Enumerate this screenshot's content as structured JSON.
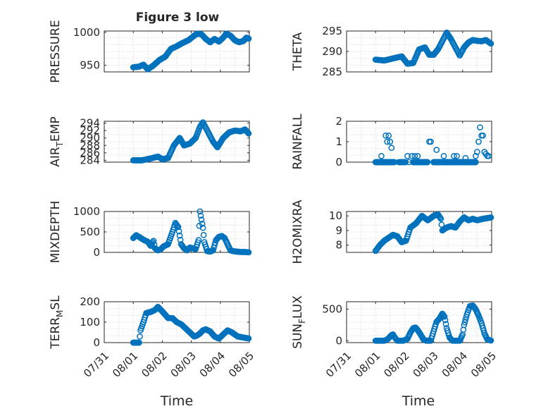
{
  "window": {
    "title": "Figure 3 low"
  },
  "figure": {
    "title": "Figure 3 low",
    "xlabel": "Time"
  },
  "colors": {
    "marker": "#0072BD",
    "axis": "#262626",
    "grid": "#d9d9d9",
    "background": "#ffffff"
  },
  "chart_data": [
    {
      "type": "scatter",
      "ylabel": "PRESSURE",
      "ylim": [
        940,
        1002
      ],
      "yticks": [
        950,
        1000
      ],
      "xlim": [
        "07/31",
        "08/05"
      ],
      "xtick_labels": [
        "07/31",
        "08/01",
        "08/02",
        "08/03",
        "08/04",
        "08/05"
      ],
      "grid": true,
      "x_range_days": [
        1.0,
        5.0
      ],
      "keypoints": [
        [
          1.0,
          947
        ],
        [
          1.2,
          948
        ],
        [
          1.35,
          951
        ],
        [
          1.5,
          944
        ],
        [
          1.7,
          950
        ],
        [
          1.9,
          958
        ],
        [
          2.1,
          963
        ],
        [
          2.3,
          975
        ],
        [
          2.5,
          979
        ],
        [
          2.7,
          984
        ],
        [
          2.9,
          988
        ],
        [
          3.1,
          995
        ],
        [
          3.2,
          998
        ],
        [
          3.35,
          997
        ],
        [
          3.5,
          990
        ],
        [
          3.65,
          985
        ],
        [
          3.8,
          990
        ],
        [
          3.95,
          986
        ],
        [
          4.1,
          992
        ],
        [
          4.2,
          998
        ],
        [
          4.35,
          995
        ],
        [
          4.5,
          988
        ],
        [
          4.65,
          985
        ],
        [
          4.8,
          987
        ],
        [
          4.9,
          992
        ],
        [
          5.0,
          990
        ]
      ],
      "note": ""
    },
    {
      "type": "scatter",
      "ylabel": "THETA",
      "ylim": [
        285,
        295
      ],
      "yticks": [
        285,
        290,
        295
      ],
      "xlim": [
        "07/31",
        "08/05"
      ],
      "xtick_labels": [
        "07/31",
        "08/01",
        "08/02",
        "08/03",
        "08/04",
        "08/05"
      ],
      "grid": true,
      "x_range_days": [
        1.0,
        5.0
      ],
      "keypoints": [
        [
          1.0,
          288
        ],
        [
          1.3,
          287.8
        ],
        [
          1.6,
          288.3
        ],
        [
          1.9,
          288.8
        ],
        [
          2.1,
          287
        ],
        [
          2.3,
          287.2
        ],
        [
          2.5,
          290.5
        ],
        [
          2.7,
          291
        ],
        [
          2.85,
          289.2
        ],
        [
          3.0,
          289.2
        ],
        [
          3.15,
          290.5
        ],
        [
          3.3,
          292.5
        ],
        [
          3.45,
          294.6
        ],
        [
          3.6,
          293
        ],
        [
          3.75,
          291
        ],
        [
          3.9,
          289
        ],
        [
          4.05,
          291
        ],
        [
          4.2,
          292.2
        ],
        [
          4.35,
          292.8
        ],
        [
          4.5,
          292.6
        ],
        [
          4.65,
          292.5
        ],
        [
          4.8,
          292.8
        ],
        [
          5.0,
          291.8
        ]
      ]
    },
    {
      "type": "scatter",
      "ylabel": "AIR_TEMP",
      "ylabel_main": "AIR",
      "ylabel_sub": "T",
      "ylabel_tail": "EMP",
      "ylim": [
        283.5,
        294.5
      ],
      "yticks": [
        284,
        286,
        288,
        290,
        292,
        294
      ],
      "xlim": [
        "07/31",
        "08/05"
      ],
      "xtick_labels": [
        "07/31",
        "08/01",
        "08/02",
        "08/03",
        "08/04",
        "08/05"
      ],
      "grid": true,
      "x_range_days": [
        1.0,
        5.0
      ],
      "keypoints": [
        [
          1.0,
          284
        ],
        [
          1.3,
          284
        ],
        [
          1.6,
          284.5
        ],
        [
          1.85,
          285
        ],
        [
          2.0,
          284.3
        ],
        [
          2.2,
          284.6
        ],
        [
          2.4,
          288
        ],
        [
          2.6,
          290
        ],
        [
          2.75,
          288
        ],
        [
          2.95,
          288.5
        ],
        [
          3.15,
          290
        ],
        [
          3.3,
          293
        ],
        [
          3.4,
          294.2
        ],
        [
          3.55,
          292
        ],
        [
          3.75,
          289
        ],
        [
          3.9,
          287.5
        ],
        [
          4.1,
          290
        ],
        [
          4.3,
          291.5
        ],
        [
          4.5,
          292
        ],
        [
          4.7,
          291.8
        ],
        [
          4.85,
          292.3
        ],
        [
          5.0,
          291
        ]
      ]
    },
    {
      "type": "scatter",
      "ylabel": "RAINFALL",
      "ylim": [
        0,
        2
      ],
      "yticks": [
        0,
        1,
        2
      ],
      "xlim": [
        "07/31",
        "08/05"
      ],
      "xtick_labels": [
        "07/31",
        "08/01",
        "08/02",
        "08/03",
        "08/04",
        "08/05"
      ],
      "grid": true,
      "points": [
        [
          1.05,
          0
        ],
        [
          1.1,
          0
        ],
        [
          1.15,
          0
        ],
        [
          1.2,
          0.3
        ],
        [
          1.25,
          0
        ],
        [
          1.3,
          0
        ],
        [
          1.35,
          1.3
        ],
        [
          1.4,
          1.0
        ],
        [
          1.45,
          1.3
        ],
        [
          1.5,
          1.0
        ],
        [
          1.55,
          0.7
        ],
        [
          1.6,
          0
        ],
        [
          1.65,
          0
        ],
        [
          1.8,
          0
        ],
        [
          1.85,
          0
        ],
        [
          1.9,
          0
        ],
        [
          1.95,
          0
        ],
        [
          2.0,
          0
        ],
        [
          2.1,
          0.3
        ],
        [
          2.15,
          0
        ],
        [
          2.25,
          0.3
        ],
        [
          2.3,
          0
        ],
        [
          2.35,
          0.3
        ],
        [
          2.45,
          0.3
        ],
        [
          2.5,
          0
        ],
        [
          2.6,
          0
        ],
        [
          2.7,
          0
        ],
        [
          2.85,
          1.0
        ],
        [
          2.9,
          1.0
        ],
        [
          3.0,
          0
        ],
        [
          3.05,
          0
        ],
        [
          3.1,
          0.6
        ],
        [
          3.2,
          0
        ],
        [
          3.3,
          0
        ],
        [
          3.35,
          0.3
        ],
        [
          3.4,
          0
        ],
        [
          3.5,
          0
        ],
        [
          3.6,
          0
        ],
        [
          3.7,
          0.3
        ],
        [
          3.8,
          0.3
        ],
        [
          3.85,
          0
        ],
        [
          3.9,
          0
        ],
        [
          3.95,
          0
        ],
        [
          4.0,
          0
        ],
        [
          4.05,
          0
        ],
        [
          4.1,
          0.2
        ],
        [
          4.2,
          0
        ],
        [
          4.3,
          0
        ],
        [
          4.35,
          0
        ],
        [
          4.45,
          0.3
        ],
        [
          4.5,
          0.5
        ],
        [
          4.55,
          1.0
        ],
        [
          4.6,
          1.7
        ],
        [
          4.65,
          1.3
        ],
        [
          4.7,
          1.3
        ],
        [
          4.75,
          0.5
        ],
        [
          4.8,
          0.4
        ],
        [
          4.85,
          0.3
        ],
        [
          4.9,
          0.3
        ]
      ],
      "zero_clusters": [
        [
          1.0,
          1.62
        ],
        [
          1.85,
          2.05
        ],
        [
          2.3,
          2.6
        ],
        [
          2.65,
          2.8
        ],
        [
          3.0,
          3.3
        ],
        [
          3.35,
          3.85
        ],
        [
          3.9,
          4.25
        ],
        [
          4.25,
          4.45
        ]
      ]
    },
    {
      "type": "scatter",
      "ylabel": "MIXDEPTH",
      "ylim": [
        0,
        1000
      ],
      "yticks": [
        0,
        500,
        1000
      ],
      "xlim": [
        "07/31",
        "08/05"
      ],
      "xtick_labels": [
        "07/31",
        "08/01",
        "08/02",
        "08/03",
        "08/04",
        "08/05"
      ],
      "grid": true,
      "x_range_days": [
        1.0,
        5.0
      ],
      "keypoints": [
        [
          1.0,
          350
        ],
        [
          1.1,
          420
        ],
        [
          1.2,
          380
        ],
        [
          1.35,
          310
        ],
        [
          1.5,
          260
        ],
        [
          1.6,
          160
        ],
        [
          1.7,
          280
        ],
        [
          1.75,
          100
        ],
        [
          1.85,
          50
        ],
        [
          1.95,
          80
        ],
        [
          2.05,
          150
        ],
        [
          2.2,
          200
        ],
        [
          2.35,
          500
        ],
        [
          2.45,
          720
        ],
        [
          2.55,
          620
        ],
        [
          2.65,
          200
        ],
        [
          2.75,
          100
        ],
        [
          2.85,
          50
        ],
        [
          2.95,
          120
        ],
        [
          3.05,
          100
        ],
        [
          3.15,
          80
        ],
        [
          3.25,
          300
        ],
        [
          3.3,
          1000
        ],
        [
          3.4,
          600
        ],
        [
          3.45,
          250
        ],
        [
          3.55,
          30
        ],
        [
          3.65,
          20
        ],
        [
          3.75,
          50
        ],
        [
          3.85,
          300
        ],
        [
          3.95,
          380
        ],
        [
          4.05,
          400
        ],
        [
          4.15,
          350
        ],
        [
          4.25,
          200
        ],
        [
          4.35,
          50
        ],
        [
          4.45,
          30
        ],
        [
          4.55,
          20
        ],
        [
          4.7,
          10
        ],
        [
          4.85,
          10
        ],
        [
          5.0,
          0
        ]
      ]
    },
    {
      "type": "scatter",
      "ylabel": "H2OMIXRA",
      "ylim": [
        7.5,
        10.3
      ],
      "yticks": [
        8,
        9,
        10
      ],
      "xlim": [
        "07/31",
        "08/05"
      ],
      "xtick_labels": [
        "07/31",
        "08/01",
        "08/02",
        "08/03",
        "08/04",
        "08/05"
      ],
      "grid": true,
      "x_range_days": [
        1.0,
        5.0
      ],
      "keypoints": [
        [
          1.0,
          7.6
        ],
        [
          1.15,
          8.0
        ],
        [
          1.3,
          8.3
        ],
        [
          1.45,
          8.5
        ],
        [
          1.6,
          8.7
        ],
        [
          1.75,
          8.6
        ],
        [
          1.9,
          8.2
        ],
        [
          2.05,
          8.3
        ],
        [
          2.2,
          9.2
        ],
        [
          2.4,
          9.5
        ],
        [
          2.6,
          10.0
        ],
        [
          2.8,
          9.7
        ],
        [
          3.0,
          10.0
        ],
        [
          3.15,
          10.1
        ],
        [
          3.25,
          9.8
        ],
        [
          3.3,
          9.0
        ],
        [
          3.45,
          9.2
        ],
        [
          3.6,
          9.3
        ],
        [
          3.75,
          9.2
        ],
        [
          3.9,
          9.6
        ],
        [
          4.05,
          9.9
        ],
        [
          4.2,
          9.7
        ],
        [
          4.35,
          9.8
        ],
        [
          4.5,
          9.7
        ],
        [
          4.7,
          9.8
        ],
        [
          5.0,
          9.9
        ]
      ]
    },
    {
      "type": "scatter",
      "ylabel": "TERR_MSL",
      "ylabel_main": "TERR",
      "ylabel_sub": "M",
      "ylabel_tail": "SL",
      "ylim": [
        0,
        200
      ],
      "yticks": [
        0,
        100,
        200
      ],
      "xlim": [
        "07/31",
        "08/05"
      ],
      "xtick_labels": [
        "07/31",
        "08/01",
        "08/02",
        "08/03",
        "08/04",
        "08/05"
      ],
      "grid": true,
      "x_range_days": [
        1.0,
        5.0
      ],
      "keypoints": [
        [
          1.0,
          0
        ],
        [
          1.2,
          0
        ],
        [
          1.25,
          60
        ],
        [
          1.35,
          100
        ],
        [
          1.45,
          145
        ],
        [
          1.6,
          150
        ],
        [
          1.75,
          160
        ],
        [
          1.85,
          175
        ],
        [
          1.95,
          160
        ],
        [
          2.05,
          145
        ],
        [
          2.2,
          120
        ],
        [
          2.35,
          120
        ],
        [
          2.5,
          100
        ],
        [
          2.65,
          90
        ],
        [
          2.8,
          70
        ],
        [
          2.95,
          50
        ],
        [
          3.1,
          30
        ],
        [
          3.2,
          35
        ],
        [
          3.3,
          45
        ],
        [
          3.4,
          60
        ],
        [
          3.5,
          65
        ],
        [
          3.65,
          55
        ],
        [
          3.8,
          30
        ],
        [
          3.95,
          20
        ],
        [
          4.1,
          40
        ],
        [
          4.25,
          60
        ],
        [
          4.4,
          50
        ],
        [
          4.6,
          30
        ],
        [
          4.8,
          25
        ],
        [
          5.0,
          20
        ]
      ]
    },
    {
      "type": "scatter",
      "ylabel": "SUN_FLUX",
      "ylabel_main": "SUN",
      "ylabel_sub": "F",
      "ylabel_tail": "LUX",
      "ylim": [
        -30,
        620
      ],
      "yticks": [
        0,
        500
      ],
      "xlim": [
        "07/31",
        "08/05"
      ],
      "xtick_labels": [
        "07/31",
        "08/01",
        "08/02",
        "08/03",
        "08/04",
        "08/05"
      ],
      "grid": true,
      "x_range_days": [
        1.0,
        5.0
      ],
      "keypoints": [
        [
          1.0,
          0
        ],
        [
          1.15,
          0
        ],
        [
          1.3,
          0
        ],
        [
          1.4,
          20
        ],
        [
          1.45,
          40
        ],
        [
          1.55,
          90
        ],
        [
          1.6,
          100
        ],
        [
          1.65,
          60
        ],
        [
          1.75,
          0
        ],
        [
          1.95,
          0
        ],
        [
          2.1,
          30
        ],
        [
          2.2,
          130
        ],
        [
          2.3,
          200
        ],
        [
          2.38,
          210
        ],
        [
          2.45,
          170
        ],
        [
          2.55,
          100
        ],
        [
          2.65,
          20
        ],
        [
          2.75,
          0
        ],
        [
          2.9,
          0
        ],
        [
          3.0,
          150
        ],
        [
          3.1,
          300
        ],
        [
          3.2,
          350
        ],
        [
          3.3,
          430
        ],
        [
          3.38,
          380
        ],
        [
          3.45,
          200
        ],
        [
          3.55,
          50
        ],
        [
          3.65,
          0
        ],
        [
          3.9,
          0
        ],
        [
          4.0,
          100
        ],
        [
          4.05,
          250
        ],
        [
          4.15,
          420
        ],
        [
          4.25,
          550
        ],
        [
          4.35,
          560
        ],
        [
          4.45,
          500
        ],
        [
          4.55,
          400
        ],
        [
          4.65,
          280
        ],
        [
          4.75,
          120
        ],
        [
          4.85,
          20
        ],
        [
          5.0,
          0
        ]
      ]
    }
  ]
}
